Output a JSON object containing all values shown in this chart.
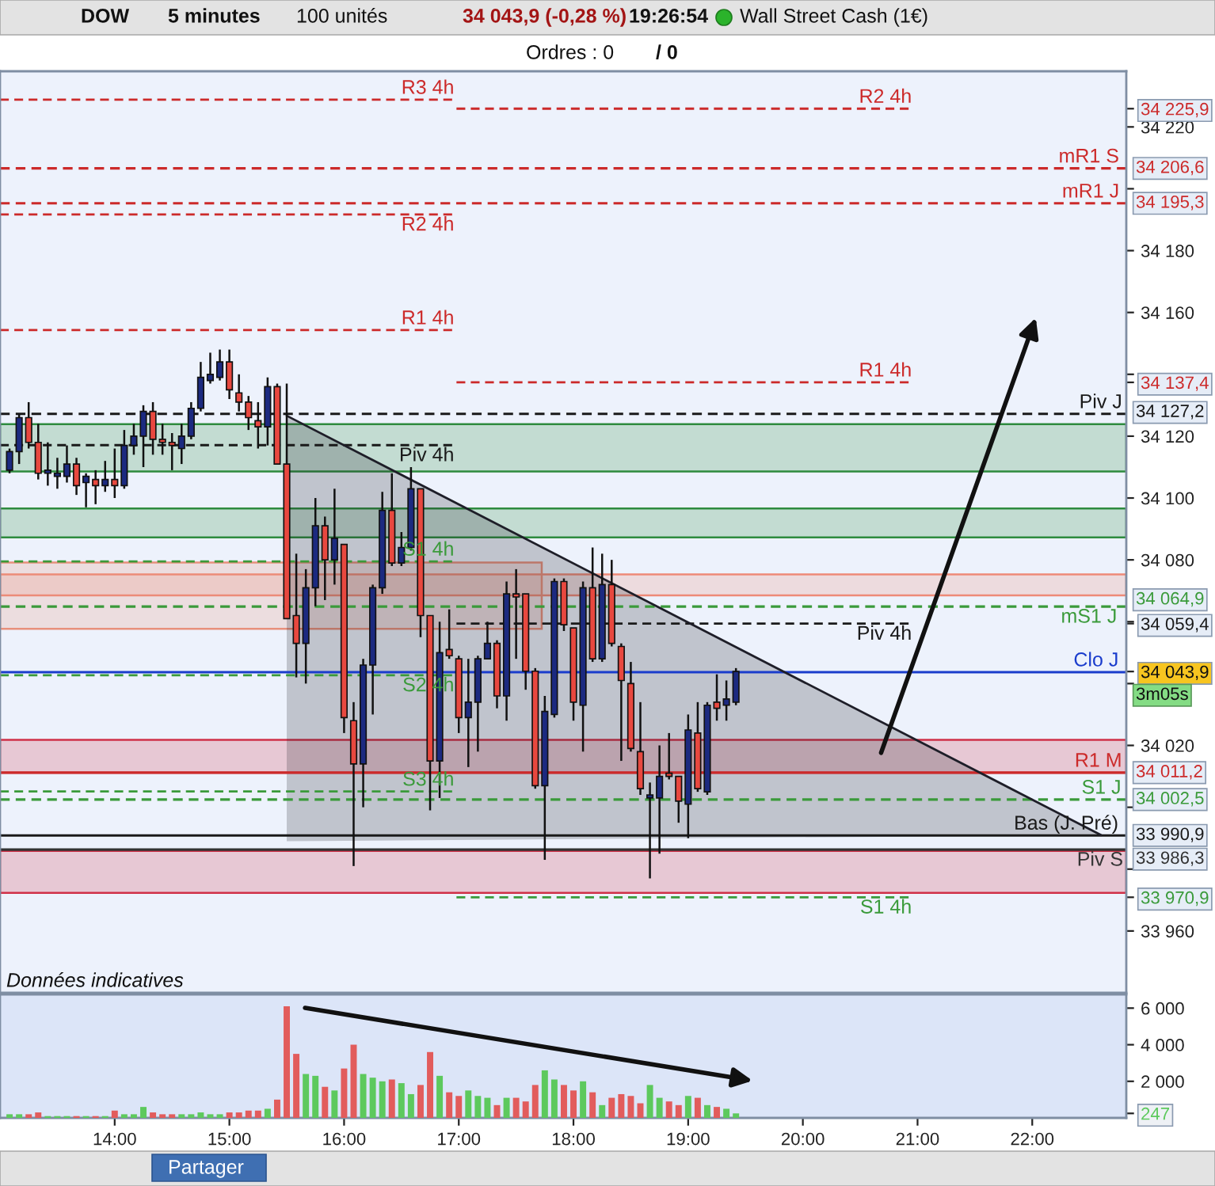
{
  "chart_data": [
    {
      "type": "candlestick",
      "title": "DOW",
      "subtitle": "Wall Street Cash (1€)",
      "x": [
        13.0833,
        13.1667,
        13.25,
        13.3333,
        13.4167,
        13.5,
        13.5833,
        13.6667,
        13.75,
        13.8333,
        13.9167,
        14,
        14.0833,
        14.1667,
        14.25,
        14.3333,
        14.4167,
        14.5,
        14.5833,
        14.6667,
        14.75,
        14.8333,
        14.9167,
        15,
        15.0833,
        15.1667,
        15.25,
        15.3333,
        15.4167,
        15.5,
        15.5833,
        15.6667,
        15.75,
        15.8333,
        15.9167,
        16,
        16.0833,
        16.1667,
        16.25,
        16.3333,
        16.4167,
        16.5,
        16.5833,
        16.6667,
        16.75,
        16.8333,
        16.9167,
        17,
        17.0833,
        17.1667,
        17.25,
        17.3333,
        17.4167,
        17.5,
        17.5833,
        17.6667,
        17.75,
        17.8333,
        17.9167,
        18,
        18.0833,
        18.1667,
        18.25,
        18.3333,
        18.4167,
        18.5,
        18.5833,
        18.6667,
        18.75,
        18.8333,
        18.9167,
        19,
        19.0833,
        19.1667,
        19.25,
        19.3333,
        19.4167
      ],
      "ohlc": [
        [
          34109,
          34116,
          34108,
          34115
        ],
        [
          34115,
          34127,
          34111,
          34126
        ],
        [
          34126,
          34131,
          34116,
          34118
        ],
        [
          34118,
          34124,
          34106,
          34108
        ],
        [
          34108,
          34118,
          34104,
          34109
        ],
        [
          34107,
          34113,
          34103,
          34108
        ],
        [
          34107,
          34117,
          34105,
          34111
        ],
        [
          34111,
          34113,
          34101,
          34104
        ],
        [
          34105,
          34108,
          34097,
          34107
        ],
        [
          34106,
          34109,
          34098,
          34104
        ],
        [
          34104,
          34112,
          34102,
          34106
        ],
        [
          34106,
          34116,
          34100,
          34104
        ],
        [
          34104,
          34122,
          34103,
          34117
        ],
        [
          34117,
          34124,
          34114,
          34120
        ],
        [
          34120,
          34130,
          34110,
          34128
        ],
        [
          34128,
          34131,
          34114,
          34119
        ],
        [
          34119,
          34124,
          34114,
          34118
        ],
        [
          34118,
          34121,
          34109,
          34117
        ],
        [
          34116,
          34124,
          34111,
          34120
        ],
        [
          34120,
          34131,
          34119,
          34129
        ],
        [
          34129,
          34144,
          34128,
          34139
        ],
        [
          34138,
          34147,
          34137,
          34140
        ],
        [
          34139,
          34148,
          34138,
          34144
        ],
        [
          34144,
          34148,
          34132,
          34135
        ],
        [
          34134,
          34140,
          34128,
          34131
        ],
        [
          34131,
          34133,
          34122,
          34126
        ],
        [
          34125,
          34131,
          34116,
          34123
        ],
        [
          34123,
          34139,
          34117,
          34136
        ],
        [
          34136,
          34137,
          34111,
          34111
        ],
        [
          34111,
          34137,
          34061,
          34061
        ],
        [
          34062,
          34082,
          34042,
          34053
        ],
        [
          34053,
          34077,
          34040,
          34071
        ],
        [
          34071,
          34100,
          34065,
          34091
        ],
        [
          34091,
          34094,
          34067,
          34080
        ],
        [
          34080,
          34103,
          34072,
          34087
        ],
        [
          34085,
          34085,
          34024,
          34029
        ],
        [
          34028,
          34034,
          33981,
          34014
        ],
        [
          34014,
          34048,
          34000,
          34046
        ],
        [
          34046,
          34072,
          34030,
          34071
        ],
        [
          34071,
          34102,
          34069,
          34096
        ],
        [
          34096,
          34108,
          34078,
          34079
        ],
        [
          34079,
          34089,
          34078,
          34084
        ],
        [
          34084,
          34110,
          34083,
          34103
        ],
        [
          34103,
          34103,
          34055,
          34062
        ],
        [
          34062,
          34062,
          33999,
          34015
        ],
        [
          34015,
          34060,
          34003,
          34050
        ],
        [
          34051,
          34064,
          34048,
          34049
        ],
        [
          34048,
          34049,
          34024,
          34029
        ],
        [
          34029,
          34048,
          34013,
          34034
        ],
        [
          34034,
          34049,
          34018,
          34048
        ],
        [
          34048,
          34060,
          34048,
          34053
        ],
        [
          34053,
          34054,
          34032,
          34036
        ],
        [
          34036,
          34073,
          34028,
          34069
        ],
        [
          34069,
          34077,
          34048,
          34068
        ],
        [
          34069,
          34069,
          34038,
          34044
        ],
        [
          34044,
          34045,
          34006,
          34007
        ],
        [
          34007,
          34036,
          33983,
          34031
        ],
        [
          34030,
          34074,
          34029,
          34073
        ],
        [
          34073,
          34074,
          34057,
          34059
        ],
        [
          34058,
          34058,
          34028,
          34034
        ],
        [
          34033,
          34073,
          34018,
          34071
        ],
        [
          34071,
          34084,
          34047,
          34048
        ],
        [
          34048,
          34082,
          34047,
          34072
        ],
        [
          34072,
          34080,
          34052,
          34053
        ],
        [
          34052,
          34053,
          34015,
          34041
        ],
        [
          34040,
          34047,
          34018,
          34019
        ],
        [
          34018,
          34034,
          34004,
          34006
        ],
        [
          34003,
          34008,
          33977,
          34004
        ],
        [
          34003,
          34020,
          33985,
          34010
        ],
        [
          34011,
          34024,
          34009,
          34010
        ],
        [
          34010,
          34010,
          33995,
          34002
        ],
        [
          34001,
          34030,
          33990,
          34025
        ],
        [
          34024,
          34034,
          34005,
          34006
        ],
        [
          34005,
          34034,
          34004,
          34033
        ],
        [
          34034,
          34043,
          34028,
          34032
        ],
        [
          34033,
          34041,
          34028,
          34035
        ],
        [
          34034,
          34045,
          34033,
          34043.9
        ]
      ],
      "colors": [
        "#1c2a80",
        "#1c2a80",
        "#e8483f",
        "#e8483f",
        "#1c2a80",
        "#1c2a80",
        "#1c2a80",
        "#e8483f",
        "#1c2a80",
        "#e8483f",
        "#1c2a80",
        "#e8483f",
        "#1c2a80",
        "#1c2a80",
        "#1c2a80",
        "#e8483f",
        "#e8483f",
        "#e8483f",
        "#1c2a80",
        "#1c2a80",
        "#1c2a80",
        "#1c2a80",
        "#1c2a80",
        "#e8483f",
        "#e8483f",
        "#e8483f",
        "#e8483f",
        "#1c2a80",
        "#e8483f",
        "#e8483f",
        "#e8483f",
        "#1c2a80",
        "#1c2a80",
        "#e8483f",
        "#1c2a80",
        "#e8483f",
        "#e8483f",
        "#1c2a80",
        "#1c2a80",
        "#1c2a80",
        "#e8483f",
        "#1c2a80",
        "#1c2a80",
        "#e8483f",
        "#e8483f",
        "#1c2a80",
        "#e8483f",
        "#e8483f",
        "#1c2a80",
        "#1c2a80",
        "#1c2a80",
        "#e8483f",
        "#1c2a80",
        "#e8483f",
        "#e8483f",
        "#e8483f",
        "#1c2a80",
        "#1c2a80",
        "#e8483f",
        "#e8483f",
        "#1c2a80",
        "#e8483f",
        "#1c2a80",
        "#e8483f",
        "#e8483f",
        "#e8483f",
        "#e8483f",
        "#1c2a80",
        "#1c2a80",
        "#e8483f",
        "#e8483f",
        "#1c2a80",
        "#e8483f",
        "#1c2a80",
        "#e8483f",
        "#1c2a80",
        "#1c2a80"
      ],
      "xlim": [
        13,
        22.82
      ],
      "ylim": [
        33940,
        34238
      ],
      "yticks": [
        {
          "value": 33960,
          "label": "33 960"
        },
        {
          "value": 33970.9,
          "label": "33 970,9"
        },
        {
          "value": 33980,
          "label": null
        },
        {
          "value": 34000,
          "label": null
        },
        {
          "value": 34020,
          "label": "34 020"
        },
        {
          "value": 34040,
          "label": null
        },
        {
          "value": 34043.9,
          "label": "34 043,9"
        },
        {
          "value": 34059.4,
          "label": "34 059,4"
        },
        {
          "value": 34060,
          "label": null
        },
        {
          "value": 34080,
          "label": "34 080"
        },
        {
          "value": 34100,
          "label": "34 100"
        },
        {
          "value": 34120,
          "label": "34 120"
        },
        {
          "value": 34137.4,
          "label": "34 137,4"
        },
        {
          "value": 34140,
          "label": null
        },
        {
          "value": 34160,
          "label": "34 160"
        },
        {
          "value": 34180,
          "label": "34 180"
        },
        {
          "value": 34200,
          "label": null
        },
        {
          "value": 34220,
          "label": "34 220"
        },
        {
          "value": 34225.9,
          "label": "34 225,9"
        }
      ],
      "tick_labels": "y",
      "series": [
        {
          "type": "line",
          "name": "R3 4h",
          "x": [
            13,
            16.96
          ],
          "values": [
            34228.8,
            34228.8
          ],
          "color": "#cc2a2a",
          "line_style": "dashed"
        },
        {
          "type": "line",
          "name": "R2 4h",
          "x": [
            13,
            16.96
          ],
          "values": [
            34191.7,
            34191.7
          ],
          "color": "#cc2a2a",
          "line_style": "dashed"
        },
        {
          "type": "line",
          "name": "R1 4h",
          "x": [
            13,
            16.96
          ],
          "values": [
            34154.3,
            34154.3
          ],
          "color": "#cc2a2a",
          "line_style": "dashed"
        },
        {
          "type": "line",
          "name": "Piv 4h",
          "x": [
            13,
            16.96
          ],
          "values": [
            34117.1,
            34117.1
          ],
          "color": "#1a1a1a",
          "line_style": "dashed"
        },
        {
          "type": "line",
          "name": "S1 4h",
          "x": [
            13,
            16.96
          ],
          "values": [
            34079.5,
            34079.5
          ],
          "color": "#3a9a3a",
          "line_style": "dashed"
        },
        {
          "type": "line",
          "name": "S2 4h",
          "x": [
            13,
            16.96
          ],
          "values": [
            34042.7,
            34042.7
          ],
          "color": "#3a9a3a",
          "line_style": "dashed"
        },
        {
          "type": "line",
          "name": "S3 4h",
          "x": [
            13,
            16.96
          ],
          "values": [
            34005.1,
            34005.1
          ],
          "color": "#3a9a3a",
          "line_style": "dashed"
        },
        {
          "type": "line",
          "name": "R2 4h",
          "x": [
            16.98,
            20.95
          ],
          "values": [
            34225.9,
            34225.9
          ],
          "color": "#cc2a2a",
          "line_style": "dashed"
        },
        {
          "type": "line",
          "name": "R1 4h",
          "x": [
            16.98,
            20.95
          ],
          "values": [
            34137.4,
            34137.4
          ],
          "color": "#cc2a2a",
          "line_style": "dashed"
        },
        {
          "type": "line",
          "name": "Piv 4h",
          "x": [
            16.98,
            20.95
          ],
          "values": [
            34059.4,
            34059.4
          ],
          "color": "#1a1a1a",
          "line_style": "dashed"
        },
        {
          "type": "line",
          "name": "S1 4h",
          "x": [
            16.98,
            20.95
          ],
          "values": [
            33970.9,
            33970.9
          ],
          "color": "#3a9a3a",
          "line_style": "dashed"
        },
        {
          "type": "line",
          "x": [
            15.5,
            22.6
          ],
          "values": [
            34126.6,
            33991
          ],
          "lower": [
            33989,
            33991
          ],
          "upper": [
            34126.6,
            33991
          ],
          "color": "#1e1e28"
        }
      ],
      "ref_lines": [
        {
          "axis": "y",
          "value": 34206.6,
          "label": "34 206,6",
          "color": "#cc2a2a",
          "line_style": "dashed"
        },
        {
          "axis": "y",
          "value": 34195.3,
          "label": "34 195,3",
          "color": "#cc2a2a",
          "line_style": "dashed"
        },
        {
          "axis": "y",
          "value": 34127.2,
          "label": "34 127,2",
          "color": "#1a1a1a",
          "line_style": "dashed"
        },
        {
          "axis": "y",
          "value": 34064.9,
          "label": "34 064,9",
          "color": "#3a9a3a",
          "line_style": "dashed"
        },
        {
          "axis": "y",
          "value": 34043.7,
          "color": "#1a3ccc",
          "line_style": "solid"
        },
        {
          "axis": "y",
          "value": 34011.2,
          "label": "34 011,2",
          "color": "#cc2a2a",
          "line_style": "solid"
        },
        {
          "axis": "y",
          "value": 34002.5,
          "label": "34 002,5",
          "color": "#3a9a3a",
          "line_style": "dashed"
        },
        {
          "axis": "y",
          "value": 33990.9,
          "label": "33 990,9",
          "color": "#1a1a1a",
          "line_style": "solid"
        },
        {
          "axis": "y",
          "value": 33986.3,
          "label": "33 986,3",
          "color": "#333333",
          "line_style": "solid"
        }
      ],
      "bands": [
        {
          "axis": "y",
          "from": 34108.6,
          "to": 34123.9,
          "color": "#2e8b3e"
        },
        {
          "axis": "y",
          "from": 34087.3,
          "to": 34096.6,
          "color": "#2e8b3e"
        },
        {
          "axis": "y",
          "from": 34068.5,
          "to": 34075.3,
          "color": "#ee8a78"
        },
        {
          "axis": "y",
          "from": 34011.2,
          "to": 34021.8,
          "color": "#d03048"
        },
        {
          "axis": "y",
          "from": 33972.3,
          "to": 33985.9,
          "color": "#d03048"
        }
      ],
      "annotations": [
        "5 minutes",
        "100 unités",
        "34 043,9 (-0,28 %)",
        "19:26:54",
        "Ordres : 0",
        "/ 0",
        "3m05s",
        "Données indicatives",
        "Partager",
        {
          "text": "mR1 S",
          "x": 22.23,
          "y": 34206.6
        },
        {
          "text": "mR1 J",
          "x": 22.26,
          "y": 34195.3
        },
        {
          "text": "Piv J",
          "x": 22.41,
          "y": 34127.2
        },
        {
          "text": "mS1 J",
          "x": 22.25,
          "y": 34064.9
        },
        {
          "text": "Clo J",
          "x": 22.36,
          "y": 34043.7
        },
        {
          "text": "R1 M",
          "x": 22.37,
          "y": 34011.2
        },
        {
          "text": "S1 J",
          "x": 22.43,
          "y": 34002.5
        },
        {
          "text": "Bas (J. Pré)",
          "x": 21.84,
          "y": 33990.9
        },
        {
          "text": "Piv S",
          "x": 22.39,
          "y": 33986.3
        }
      ]
    },
    {
      "type": "bar",
      "x": [
        13.0833,
        13.1667,
        13.25,
        13.3333,
        13.4167,
        13.5,
        13.5833,
        13.6667,
        13.75,
        13.8333,
        13.9167,
        14,
        14.0833,
        14.1667,
        14.25,
        14.3333,
        14.4167,
        14.5,
        14.5833,
        14.6667,
        14.75,
        14.8333,
        14.9167,
        15,
        15.0833,
        15.1667,
        15.25,
        15.3333,
        15.4167,
        15.5,
        15.5833,
        15.6667,
        15.75,
        15.8333,
        15.9167,
        16,
        16.0833,
        16.1667,
        16.25,
        16.3333,
        16.4167,
        16.5,
        16.5833,
        16.6667,
        16.75,
        16.8333,
        16.9167,
        17,
        17.0833,
        17.1667,
        17.25,
        17.3333,
        17.4167,
        17.5,
        17.5833,
        17.6667,
        17.75,
        17.8333,
        17.9167,
        18,
        18.0833,
        18.1667,
        18.25,
        18.3333,
        18.4167,
        18.5,
        18.5833,
        18.6667,
        18.75,
        18.8333,
        18.9167,
        19,
        19.0833,
        19.1667,
        19.25,
        19.3333,
        19.4167
      ],
      "values": [
        200,
        200,
        200,
        300,
        100,
        100,
        100,
        100,
        100,
        100,
        100,
        400,
        200,
        200,
        600,
        300,
        200,
        200,
        200,
        200,
        300,
        200,
        200,
        300,
        300,
        400,
        400,
        500,
        1000,
        6100,
        3500,
        2400,
        2300,
        1700,
        1500,
        2700,
        4000,
        2400,
        2200,
        2000,
        2100,
        1900,
        1300,
        1800,
        3600,
        2300,
        1400,
        1200,
        1500,
        1200,
        1100,
        700,
        1100,
        1100,
        900,
        1800,
        2600,
        2100,
        1800,
        1500,
        2000,
        1400,
        700,
        1100,
        1300,
        1200,
        800,
        1800,
        1100,
        900,
        700,
        1200,
        1100,
        700,
        600,
        500,
        247
      ],
      "colors": [
        "#5dc95d",
        "#5dc95d",
        "#e25c5c",
        "#e25c5c",
        "#5dc95d",
        "#5dc95d",
        "#5dc95d",
        "#e25c5c",
        "#5dc95d",
        "#e25c5c",
        "#5dc95d",
        "#e25c5c",
        "#5dc95d",
        "#5dc95d",
        "#5dc95d",
        "#e25c5c",
        "#e25c5c",
        "#e25c5c",
        "#5dc95d",
        "#5dc95d",
        "#5dc95d",
        "#5dc95d",
        "#5dc95d",
        "#e25c5c",
        "#e25c5c",
        "#e25c5c",
        "#e25c5c",
        "#5dc95d",
        "#e25c5c",
        "#e25c5c",
        "#e25c5c",
        "#5dc95d",
        "#5dc95d",
        "#e25c5c",
        "#5dc95d",
        "#e25c5c",
        "#e25c5c",
        "#5dc95d",
        "#5dc95d",
        "#5dc95d",
        "#e25c5c",
        "#5dc95d",
        "#5dc95d",
        "#e25c5c",
        "#e25c5c",
        "#5dc95d",
        "#e25c5c",
        "#e25c5c",
        "#5dc95d",
        "#5dc95d",
        "#5dc95d",
        "#e25c5c",
        "#5dc95d",
        "#e25c5c",
        "#e25c5c",
        "#e25c5c",
        "#5dc95d",
        "#5dc95d",
        "#e25c5c",
        "#e25c5c",
        "#5dc95d",
        "#e25c5c",
        "#5dc95d",
        "#e25c5c",
        "#e25c5c",
        "#e25c5c",
        "#e25c5c",
        "#5dc95d",
        "#5dc95d",
        "#e25c5c",
        "#e25c5c",
        "#5dc95d",
        "#e25c5c",
        "#5dc95d",
        "#e25c5c",
        "#5dc95d",
        "#5dc95d"
      ],
      "xlim": [
        13,
        22.82
      ],
      "ylim": [
        0,
        6750
      ],
      "xticks": [
        {
          "value": 14,
          "label": "14:00"
        },
        {
          "value": 15,
          "label": "15:00"
        },
        {
          "value": 16,
          "label": "16:00"
        },
        {
          "value": 17,
          "label": "17:00"
        },
        {
          "value": 18,
          "label": "18:00"
        },
        {
          "value": 19,
          "label": "19:00"
        },
        {
          "value": 20,
          "label": "20:00"
        },
        {
          "value": 21,
          "label": "21:00"
        },
        {
          "value": 22,
          "label": "22:00"
        }
      ],
      "yticks": [
        {
          "value": 247,
          "label": "247"
        },
        {
          "value": 2000,
          "label": "2 000"
        },
        {
          "value": 4000,
          "label": "4 000"
        },
        {
          "value": 6000,
          "label": "6 000"
        }
      ]
    }
  ]
}
